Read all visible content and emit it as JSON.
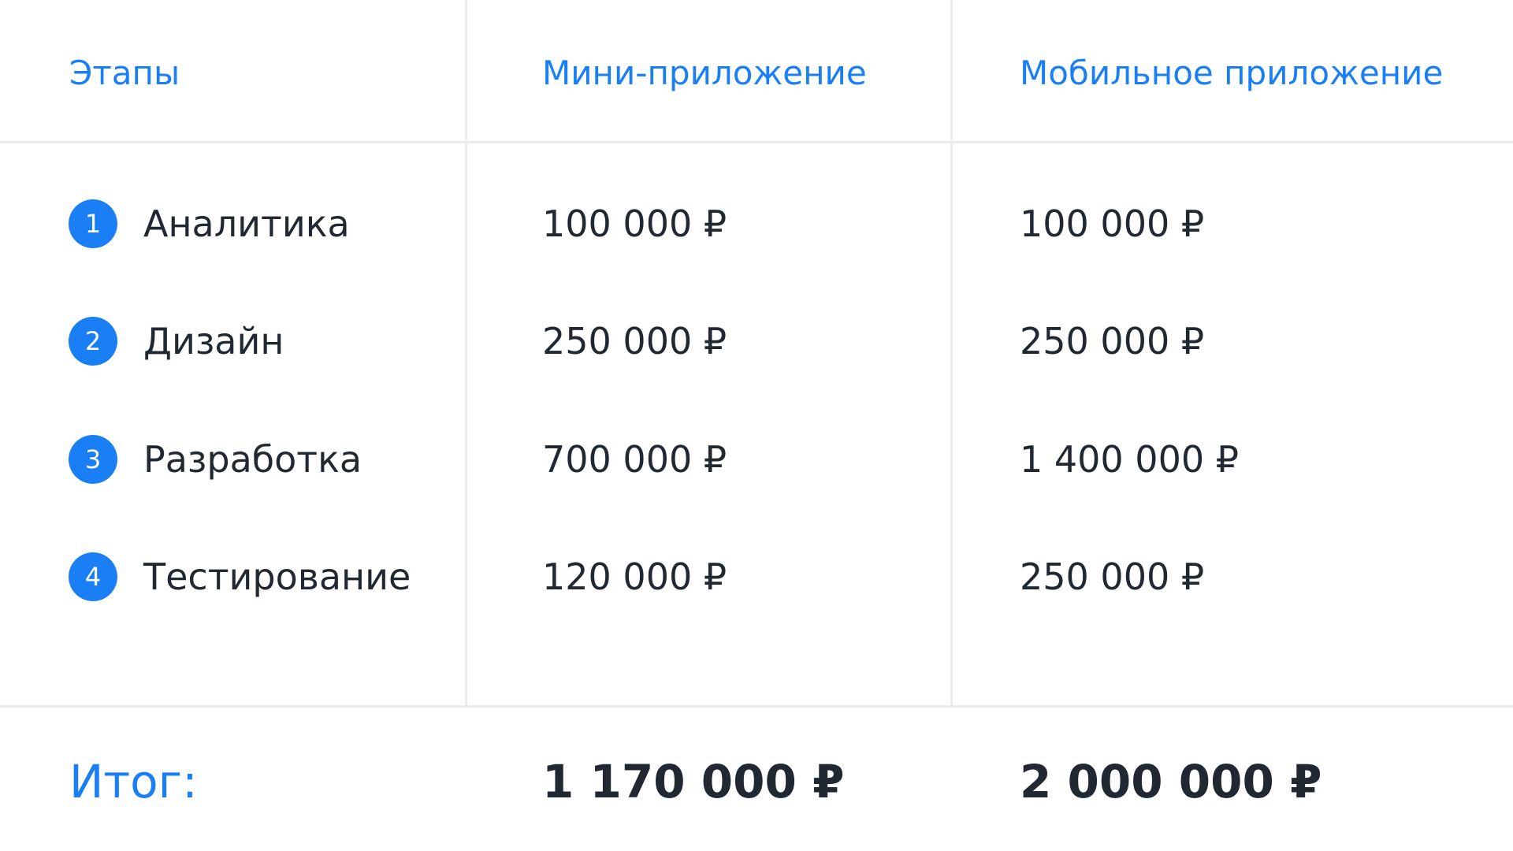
{
  "header": {
    "stage": "Этапы",
    "mini_app": "Мини-приложение",
    "mobile_app": "Мобильное приложение"
  },
  "rows": [
    {
      "number": "1",
      "stage": "Аналитика",
      "mini_app": "100 000 ₽",
      "mobile_app": "100 000 ₽"
    },
    {
      "number": "2",
      "stage": "Дизайн",
      "mini_app": "250 000 ₽",
      "mobile_app": "250 000 ₽"
    },
    {
      "number": "3",
      "stage": "Разработка",
      "mini_app": "700 000 ₽",
      "mobile_app": "1 400 000 ₽"
    },
    {
      "number": "4",
      "stage": "Тестирование",
      "mini_app": "120 000 ₽",
      "mobile_app": "250 000 ₽"
    }
  ],
  "total": {
    "label": "Итог:",
    "mini_app": "1 170 000 ₽",
    "mobile_app": "2 000 000 ₽"
  }
}
